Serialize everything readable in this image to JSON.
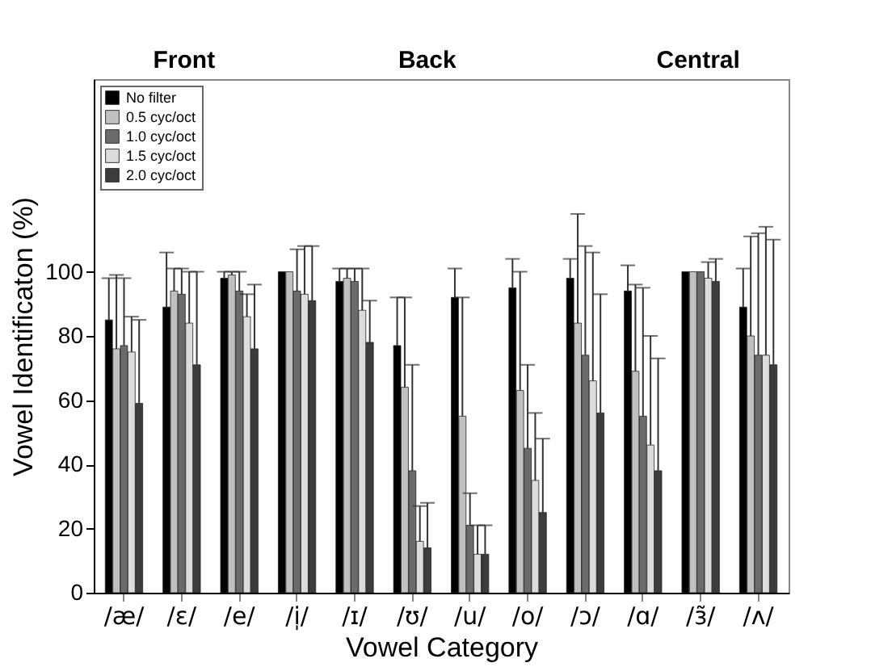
{
  "chart_data": {
    "type": "bar",
    "xlabel": "Vowel Category",
    "ylabel": "Vowel Identificaton (%)",
    "categories": [
      "/æ/",
      "/ɛ/",
      "/e/",
      "/i̩/",
      "/ɪ/",
      "/ʊ/",
      "/u/",
      "/o/",
      "/ɔ/",
      "/ɑ/",
      "/ɜ̃/",
      "/ʌ/"
    ],
    "series": [
      {
        "name": "No filter",
        "color": "#000000",
        "values": [
          85,
          89,
          98,
          100,
          97,
          77,
          92,
          95,
          98,
          94,
          100,
          89
        ],
        "errors": [
          [
            85,
            98
          ],
          [
            89,
            106
          ],
          [
            98,
            100
          ],
          null,
          [
            97,
            101
          ],
          [
            77,
            92
          ],
          [
            92,
            101
          ],
          [
            95,
            104
          ],
          [
            98,
            104
          ],
          [
            94,
            102
          ],
          null,
          [
            89,
            101
          ]
        ]
      },
      {
        "name": "0.5 cyc/oct",
        "color": "#c0c0c0",
        "values": [
          76,
          94,
          99,
          100,
          98,
          64,
          55,
          63,
          84,
          69,
          100,
          80
        ],
        "errors": [
          [
            76,
            99
          ],
          [
            94,
            101
          ],
          [
            99,
            100
          ],
          null,
          [
            98,
            101
          ],
          [
            64,
            92
          ],
          [
            55,
            92
          ],
          [
            63,
            100
          ],
          [
            84,
            118
          ],
          [
            69,
            96
          ],
          null,
          [
            80,
            111
          ]
        ]
      },
      {
        "name": "1.0 cyc/oct",
        "color": "#6b6b6b",
        "values": [
          77,
          93,
          94,
          94,
          97,
          38,
          21,
          45,
          74,
          55,
          100,
          74
        ],
        "errors": [
          [
            77,
            98
          ],
          [
            93,
            101
          ],
          [
            94,
            100
          ],
          [
            94,
            107
          ],
          [
            97,
            101
          ],
          [
            38,
            71
          ],
          [
            21,
            31
          ],
          [
            45,
            71
          ],
          [
            74,
            108
          ],
          [
            55,
            95
          ],
          null,
          [
            74,
            112
          ]
        ]
      },
      {
        "name": "1.5 cyc/oct",
        "color": "#dcdcdc",
        "values": [
          75,
          84,
          86,
          93,
          88,
          16,
          12,
          35,
          66,
          46,
          98,
          74
        ],
        "errors": [
          [
            75,
            86
          ],
          [
            84,
            100
          ],
          [
            86,
            93
          ],
          [
            93,
            108
          ],
          [
            88,
            101
          ],
          [
            16,
            27
          ],
          [
            12,
            21
          ],
          [
            35,
            56
          ],
          [
            66,
            106
          ],
          [
            46,
            80
          ],
          [
            98,
            103
          ],
          [
            74,
            114
          ]
        ]
      },
      {
        "name": "2.0 cyc/oct",
        "color": "#3c3c3c",
        "values": [
          59,
          71,
          76,
          91,
          78,
          14,
          12,
          25,
          56,
          38,
          97,
          71
        ],
        "errors": [
          [
            59,
            85
          ],
          [
            71,
            100
          ],
          [
            76,
            96
          ],
          [
            91,
            108
          ],
          [
            78,
            91
          ],
          [
            14,
            28
          ],
          [
            12,
            21
          ],
          [
            25,
            48
          ],
          [
            56,
            93
          ],
          [
            38,
            73
          ],
          [
            97,
            104
          ],
          [
            71,
            110
          ]
        ]
      }
    ],
    "ylim": [
      0,
      160
    ],
    "yticks": [
      0,
      20,
      40,
      60,
      80,
      100
    ],
    "grid": false,
    "legend": "top left",
    "annotations": [
      "Front",
      "Back",
      "Central"
    ]
  }
}
